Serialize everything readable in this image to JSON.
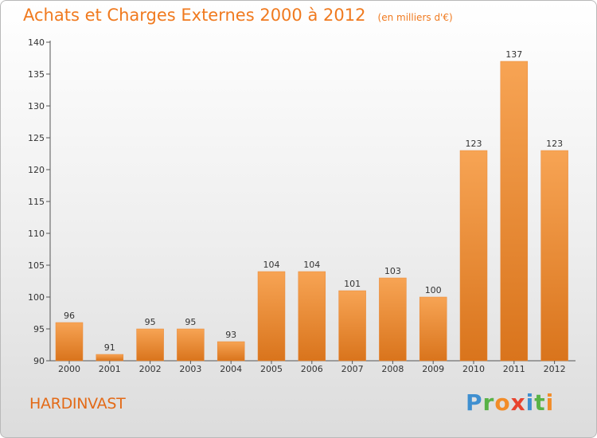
{
  "header": {
    "title": "Achats et Charges Externes 2000 à 2012",
    "unit": "(en milliers d'€)"
  },
  "footer": {
    "commune": "HARDINVAST",
    "logo": [
      "P",
      "r",
      "o",
      "x",
      "i",
      "t",
      "i"
    ],
    "logo_colors": [
      "#3f8fd0",
      "#58b247",
      "#f28c28",
      "#e8432e",
      "#3f8fd0",
      "#58b247",
      "#f28c28"
    ]
  },
  "colors": {
    "accent": "#f07a1f",
    "bar_light": "#f7a454",
    "bar_dark": "#d9741c"
  },
  "chart_data": {
    "type": "bar",
    "categories": [
      "2000",
      "2001",
      "2002",
      "2003",
      "2004",
      "2005",
      "2006",
      "2007",
      "2008",
      "2009",
      "2010",
      "2011",
      "2012"
    ],
    "values": [
      96,
      91,
      95,
      95,
      93,
      104,
      104,
      101,
      103,
      100,
      123,
      137,
      123
    ],
    "ylim": [
      90,
      140
    ],
    "yticks": [
      90,
      95,
      100,
      105,
      110,
      115,
      120,
      125,
      130,
      135,
      140
    ],
    "grid": false,
    "legend": "none"
  }
}
